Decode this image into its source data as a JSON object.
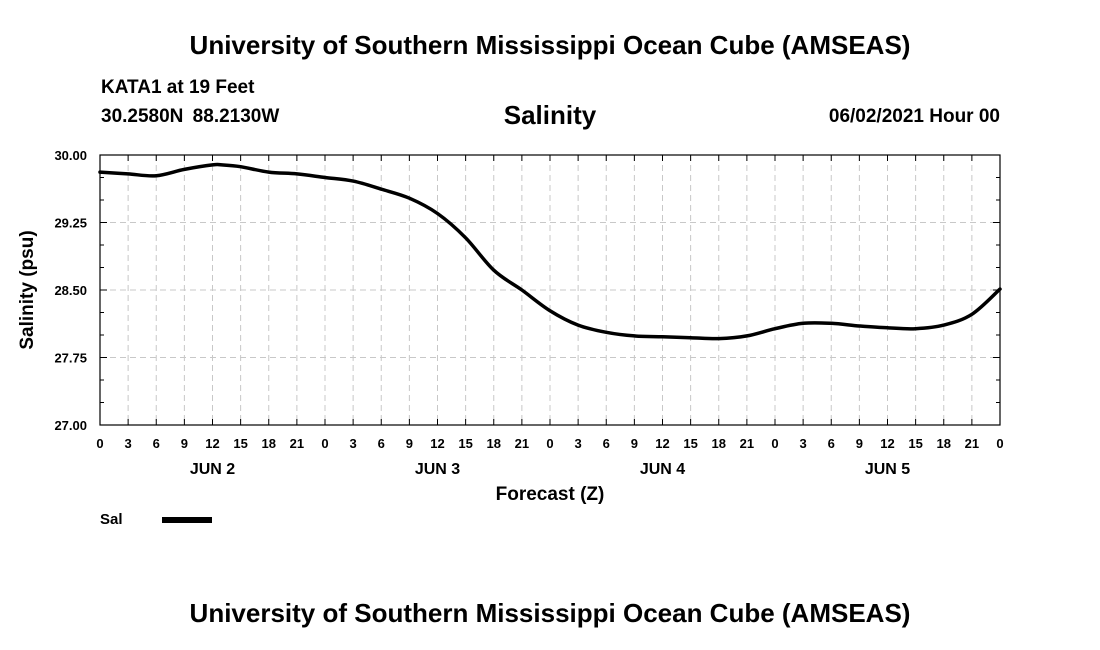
{
  "header": {
    "title": "University of Southern Mississippi Ocean Cube (AMSEAS)",
    "station": "KATA1 at 19 Feet",
    "coordinates": "30.2580N  88.2130W",
    "run_time": "06/02/2021 Hour 00"
  },
  "footer": {
    "title": "University of Southern Mississippi Ocean Cube (AMSEAS)"
  },
  "chart_data": {
    "type": "line",
    "title": "Salinity",
    "xlabel": "Forecast (Z)",
    "ylabel": "Salinity (psu)",
    "ylim": [
      27.0,
      30.0
    ],
    "yticks": [
      "27.00",
      "27.75",
      "28.50",
      "29.25",
      "30.00"
    ],
    "xlim": [
      0,
      96
    ],
    "x_tick_labels": [
      "0",
      "3",
      "6",
      "9",
      "12",
      "15",
      "18",
      "21",
      "0",
      "3",
      "6",
      "9",
      "12",
      "15",
      "18",
      "21",
      "0",
      "3",
      "6",
      "9",
      "12",
      "15",
      "18",
      "21",
      "0",
      "3",
      "6",
      "9",
      "12",
      "15",
      "18",
      "21",
      "0"
    ],
    "day_labels": [
      {
        "label": "JUN 2",
        "hour": 12
      },
      {
        "label": "JUN 3",
        "hour": 36
      },
      {
        "label": "JUN 4",
        "hour": 60
      },
      {
        "label": "JUN 5",
        "hour": 84
      }
    ],
    "grid": true,
    "series": [
      {
        "name": "Sal",
        "color": "#000000",
        "x": [
          0,
          3,
          6,
          9,
          12,
          13,
          15,
          18,
          21,
          24,
          27,
          30,
          33,
          36,
          39,
          42,
          45,
          48,
          51,
          54,
          57,
          60,
          63,
          66,
          69,
          72,
          75,
          78,
          81,
          84,
          87,
          90,
          93,
          96
        ],
        "values": [
          29.81,
          29.79,
          29.77,
          29.84,
          29.89,
          29.89,
          29.87,
          29.81,
          29.79,
          29.75,
          29.71,
          29.62,
          29.52,
          29.35,
          29.08,
          28.72,
          28.5,
          28.27,
          28.11,
          28.03,
          27.99,
          27.98,
          27.97,
          27.96,
          27.99,
          28.07,
          28.13,
          28.13,
          28.1,
          28.08,
          28.07,
          28.11,
          28.23,
          28.51
        ]
      }
    ]
  }
}
